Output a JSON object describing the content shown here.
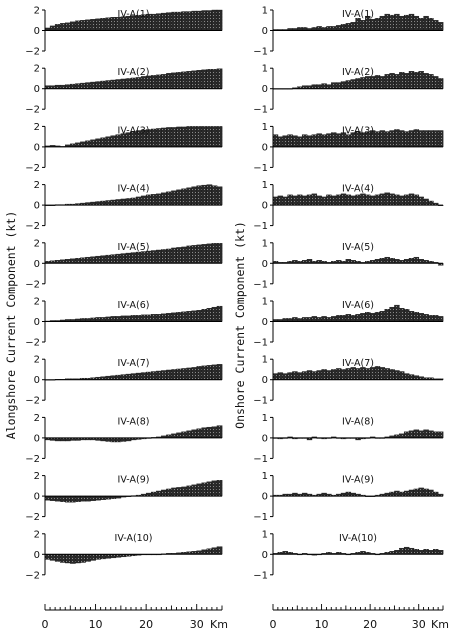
{
  "chart_data": [
    {
      "type": "bar",
      "ylabel": "Alongshore Current Component (kt)",
      "xlabel_unit": "Km",
      "xticks": [
        0,
        10,
        20,
        30
      ],
      "xlim": [
        0,
        35
      ],
      "ylim": [
        -2,
        2
      ],
      "yticks": [
        2,
        0,
        -2
      ],
      "panels": [
        {
          "title": "IV-A(1)",
          "values": [
            0.25,
            0.45,
            0.6,
            0.7,
            0.75,
            0.85,
            0.95,
            1.0,
            1.05,
            1.1,
            1.15,
            1.2,
            1.25,
            1.3,
            1.3,
            1.35,
            1.4,
            1.45,
            1.5,
            1.55,
            1.6,
            1.6,
            1.65,
            1.7,
            1.75,
            1.8,
            1.8,
            1.85,
            1.85,
            1.9,
            1.9,
            1.95,
            1.95,
            2.0,
            2.0
          ]
        },
        {
          "title": "IV-A(2)",
          "values": [
            0.3,
            0.3,
            0.35,
            0.35,
            0.4,
            0.45,
            0.5,
            0.55,
            0.6,
            0.65,
            0.7,
            0.75,
            0.8,
            0.85,
            0.9,
            0.95,
            1.0,
            1.05,
            1.1,
            1.2,
            1.25,
            1.3,
            1.35,
            1.4,
            1.5,
            1.55,
            1.6,
            1.65,
            1.7,
            1.75,
            1.8,
            1.85,
            1.9,
            1.9,
            1.95
          ]
        },
        {
          "title": "IV-A(3)",
          "values": [
            0.1,
            0.15,
            0.1,
            0.05,
            0.2,
            0.3,
            0.4,
            0.5,
            0.6,
            0.7,
            0.8,
            0.9,
            1.0,
            1.1,
            1.2,
            1.3,
            1.4,
            1.5,
            1.6,
            1.65,
            1.7,
            1.75,
            1.8,
            1.85,
            1.9,
            1.9,
            1.95,
            1.95,
            2.0,
            2.0,
            2.0,
            2.0,
            2.0,
            2.0,
            2.0
          ]
        },
        {
          "title": "IV-A(4)",
          "values": [
            0.0,
            0.0,
            0.05,
            0.05,
            0.1,
            0.1,
            0.15,
            0.2,
            0.25,
            0.3,
            0.35,
            0.4,
            0.45,
            0.5,
            0.55,
            0.6,
            0.65,
            0.7,
            0.8,
            0.9,
            1.0,
            1.05,
            1.1,
            1.2,
            1.3,
            1.4,
            1.5,
            1.6,
            1.7,
            1.8,
            1.9,
            1.95,
            2.0,
            1.9,
            1.8
          ]
        },
        {
          "title": "IV-A(5)",
          "values": [
            0.2,
            0.25,
            0.3,
            0.35,
            0.4,
            0.45,
            0.5,
            0.55,
            0.6,
            0.65,
            0.7,
            0.75,
            0.8,
            0.85,
            0.9,
            0.95,
            1.0,
            1.05,
            1.1,
            1.15,
            1.2,
            1.25,
            1.3,
            1.35,
            1.4,
            1.5,
            1.55,
            1.6,
            1.7,
            1.75,
            1.8,
            1.85,
            1.9,
            1.95,
            1.95
          ]
        },
        {
          "title": "IV-A(6)",
          "values": [
            0.05,
            0.1,
            0.1,
            0.15,
            0.2,
            0.2,
            0.25,
            0.3,
            0.3,
            0.35,
            0.4,
            0.4,
            0.45,
            0.5,
            0.5,
            0.55,
            0.55,
            0.6,
            0.6,
            0.65,
            0.65,
            0.7,
            0.7,
            0.75,
            0.8,
            0.85,
            0.9,
            0.95,
            1.0,
            1.05,
            1.1,
            1.2,
            1.3,
            1.4,
            1.5
          ]
        },
        {
          "title": "IV-A(7)",
          "values": [
            -0.05,
            0.0,
            0.05,
            0.05,
            0.1,
            0.1,
            0.1,
            0.15,
            0.15,
            0.2,
            0.25,
            0.3,
            0.35,
            0.4,
            0.45,
            0.5,
            0.55,
            0.6,
            0.65,
            0.7,
            0.75,
            0.8,
            0.85,
            0.9,
            0.95,
            1.0,
            1.05,
            1.1,
            1.15,
            1.2,
            1.3,
            1.35,
            1.4,
            1.45,
            1.5
          ]
        },
        {
          "title": "IV-A(8)",
          "values": [
            -0.2,
            -0.25,
            -0.3,
            -0.3,
            -0.3,
            -0.25,
            -0.25,
            -0.2,
            -0.2,
            -0.2,
            -0.25,
            -0.3,
            -0.35,
            -0.4,
            -0.4,
            -0.35,
            -0.3,
            -0.2,
            -0.15,
            -0.1,
            0.0,
            0.05,
            0.1,
            0.2,
            0.3,
            0.4,
            0.5,
            0.6,
            0.7,
            0.8,
            0.9,
            1.0,
            1.05,
            1.1,
            1.2
          ]
        },
        {
          "title": "IV-A(9)",
          "values": [
            -0.4,
            -0.45,
            -0.5,
            -0.55,
            -0.6,
            -0.6,
            -0.55,
            -0.5,
            -0.5,
            -0.45,
            -0.4,
            -0.35,
            -0.3,
            -0.25,
            -0.2,
            -0.1,
            0.0,
            0.05,
            0.1,
            0.2,
            0.3,
            0.4,
            0.5,
            0.6,
            0.7,
            0.8,
            0.85,
            0.9,
            1.0,
            1.1,
            1.2,
            1.3,
            1.4,
            1.5,
            1.55
          ]
        },
        {
          "title": "IV-A(10)",
          "values": [
            -0.5,
            -0.6,
            -0.7,
            -0.8,
            -0.85,
            -0.9,
            -0.85,
            -0.8,
            -0.7,
            -0.6,
            -0.5,
            -0.45,
            -0.4,
            -0.35,
            -0.3,
            -0.25,
            -0.2,
            -0.15,
            -0.1,
            -0.05,
            -0.05,
            0.0,
            0.0,
            0.05,
            0.1,
            0.1,
            0.15,
            0.2,
            0.25,
            0.3,
            0.35,
            0.45,
            0.55,
            0.65,
            0.75
          ]
        }
      ]
    },
    {
      "type": "bar",
      "ylabel": "Onshore Current Component (kt)",
      "xlabel_unit": "Km",
      "xticks": [
        0,
        10,
        20,
        30
      ],
      "xlim": [
        0,
        35
      ],
      "ylim": [
        -1,
        1
      ],
      "yticks": [
        1,
        0,
        -1
      ],
      "panels": [
        {
          "title": "IV-A(1)",
          "values": [
            0.05,
            0.05,
            0.05,
            0.1,
            0.1,
            0.15,
            0.15,
            0.1,
            0.15,
            0.2,
            0.15,
            0.2,
            0.2,
            0.25,
            0.3,
            0.35,
            0.4,
            0.6,
            0.5,
            0.7,
            0.55,
            0.6,
            0.7,
            0.8,
            0.75,
            0.8,
            0.7,
            0.75,
            0.8,
            0.7,
            0.6,
            0.7,
            0.6,
            0.5,
            0.4
          ]
        },
        {
          "title": "IV-A(2)",
          "values": [
            0.0,
            0.0,
            0.0,
            0.0,
            0.05,
            0.1,
            0.15,
            0.15,
            0.2,
            0.2,
            0.25,
            0.2,
            0.3,
            0.3,
            0.35,
            0.4,
            0.45,
            0.5,
            0.55,
            0.6,
            0.6,
            0.65,
            0.6,
            0.7,
            0.75,
            0.7,
            0.8,
            0.75,
            0.85,
            0.8,
            0.85,
            0.75,
            0.7,
            0.6,
            0.5
          ]
        },
        {
          "title": "IV-A(3)",
          "values": [
            0.6,
            0.5,
            0.55,
            0.6,
            0.55,
            0.5,
            0.6,
            0.55,
            0.6,
            0.65,
            0.6,
            0.65,
            0.7,
            0.65,
            0.7,
            0.6,
            0.7,
            0.75,
            0.7,
            0.75,
            0.8,
            0.75,
            0.8,
            0.75,
            0.8,
            0.85,
            0.8,
            0.75,
            0.8,
            0.85,
            0.8,
            0.8,
            0.8,
            0.8,
            0.8
          ]
        },
        {
          "title": "IV-A(4)",
          "values": [
            0.4,
            0.45,
            0.4,
            0.5,
            0.45,
            0.5,
            0.45,
            0.5,
            0.55,
            0.45,
            0.4,
            0.5,
            0.45,
            0.5,
            0.55,
            0.5,
            0.45,
            0.5,
            0.55,
            0.5,
            0.45,
            0.5,
            0.55,
            0.6,
            0.55,
            0.5,
            0.45,
            0.5,
            0.55,
            0.5,
            0.4,
            0.3,
            0.2,
            0.1,
            0.0
          ]
        },
        {
          "title": "IV-A(5)",
          "values": [
            0.1,
            0.05,
            0.05,
            0.1,
            0.15,
            0.1,
            0.15,
            0.2,
            0.1,
            0.15,
            0.1,
            0.05,
            0.1,
            0.15,
            0.1,
            0.2,
            0.15,
            0.1,
            0.05,
            0.1,
            0.15,
            0.2,
            0.25,
            0.3,
            0.25,
            0.2,
            0.15,
            0.2,
            0.25,
            0.3,
            0.2,
            0.15,
            0.1,
            0.05,
            -0.1
          ]
        },
        {
          "title": "IV-A(6)",
          "values": [
            0.1,
            0.1,
            0.15,
            0.15,
            0.2,
            0.15,
            0.2,
            0.2,
            0.25,
            0.2,
            0.25,
            0.2,
            0.25,
            0.3,
            0.3,
            0.35,
            0.3,
            0.35,
            0.4,
            0.45,
            0.4,
            0.45,
            0.5,
            0.6,
            0.7,
            0.8,
            0.65,
            0.6,
            0.5,
            0.45,
            0.4,
            0.35,
            0.3,
            0.3,
            0.25
          ]
        },
        {
          "title": "IV-A(7)",
          "values": [
            0.3,
            0.35,
            0.3,
            0.35,
            0.4,
            0.35,
            0.4,
            0.45,
            0.4,
            0.45,
            0.5,
            0.45,
            0.5,
            0.55,
            0.5,
            0.55,
            0.6,
            0.55,
            0.6,
            0.55,
            0.6,
            0.65,
            0.6,
            0.55,
            0.5,
            0.45,
            0.4,
            0.3,
            0.25,
            0.2,
            0.15,
            0.1,
            0.1,
            0.05,
            0.05
          ]
        },
        {
          "title": "IV-A(8)",
          "values": [
            0.0,
            -0.05,
            0.0,
            0.05,
            -0.05,
            0.0,
            0.0,
            -0.1,
            0.05,
            0.0,
            -0.05,
            0.0,
            0.05,
            0.0,
            -0.05,
            0.0,
            0.0,
            -0.1,
            -0.05,
            0.0,
            0.05,
            0.0,
            0.0,
            0.05,
            0.1,
            0.15,
            0.2,
            0.3,
            0.35,
            0.4,
            0.35,
            0.4,
            0.35,
            0.3,
            0.3
          ]
        },
        {
          "title": "IV-A(9)",
          "values": [
            0.05,
            0.05,
            0.1,
            0.1,
            0.15,
            0.1,
            0.15,
            0.1,
            0.05,
            0.1,
            0.15,
            0.1,
            0.05,
            0.1,
            0.15,
            0.2,
            0.15,
            0.1,
            0.05,
            0.0,
            0.0,
            0.05,
            0.1,
            0.15,
            0.2,
            0.25,
            0.2,
            0.25,
            0.3,
            0.35,
            0.4,
            0.35,
            0.3,
            0.2,
            0.1
          ]
        },
        {
          "title": "IV-A(10)",
          "values": [
            0.05,
            0.1,
            0.15,
            0.1,
            0.05,
            0.0,
            0.05,
            0.0,
            -0.05,
            0.0,
            0.05,
            0.1,
            0.05,
            0.1,
            0.05,
            0.0,
            0.05,
            0.1,
            0.15,
            0.1,
            0.05,
            0.0,
            0.05,
            0.1,
            0.15,
            0.2,
            0.3,
            0.35,
            0.3,
            0.25,
            0.2,
            0.25,
            0.2,
            0.25,
            0.2
          ]
        }
      ]
    }
  ]
}
